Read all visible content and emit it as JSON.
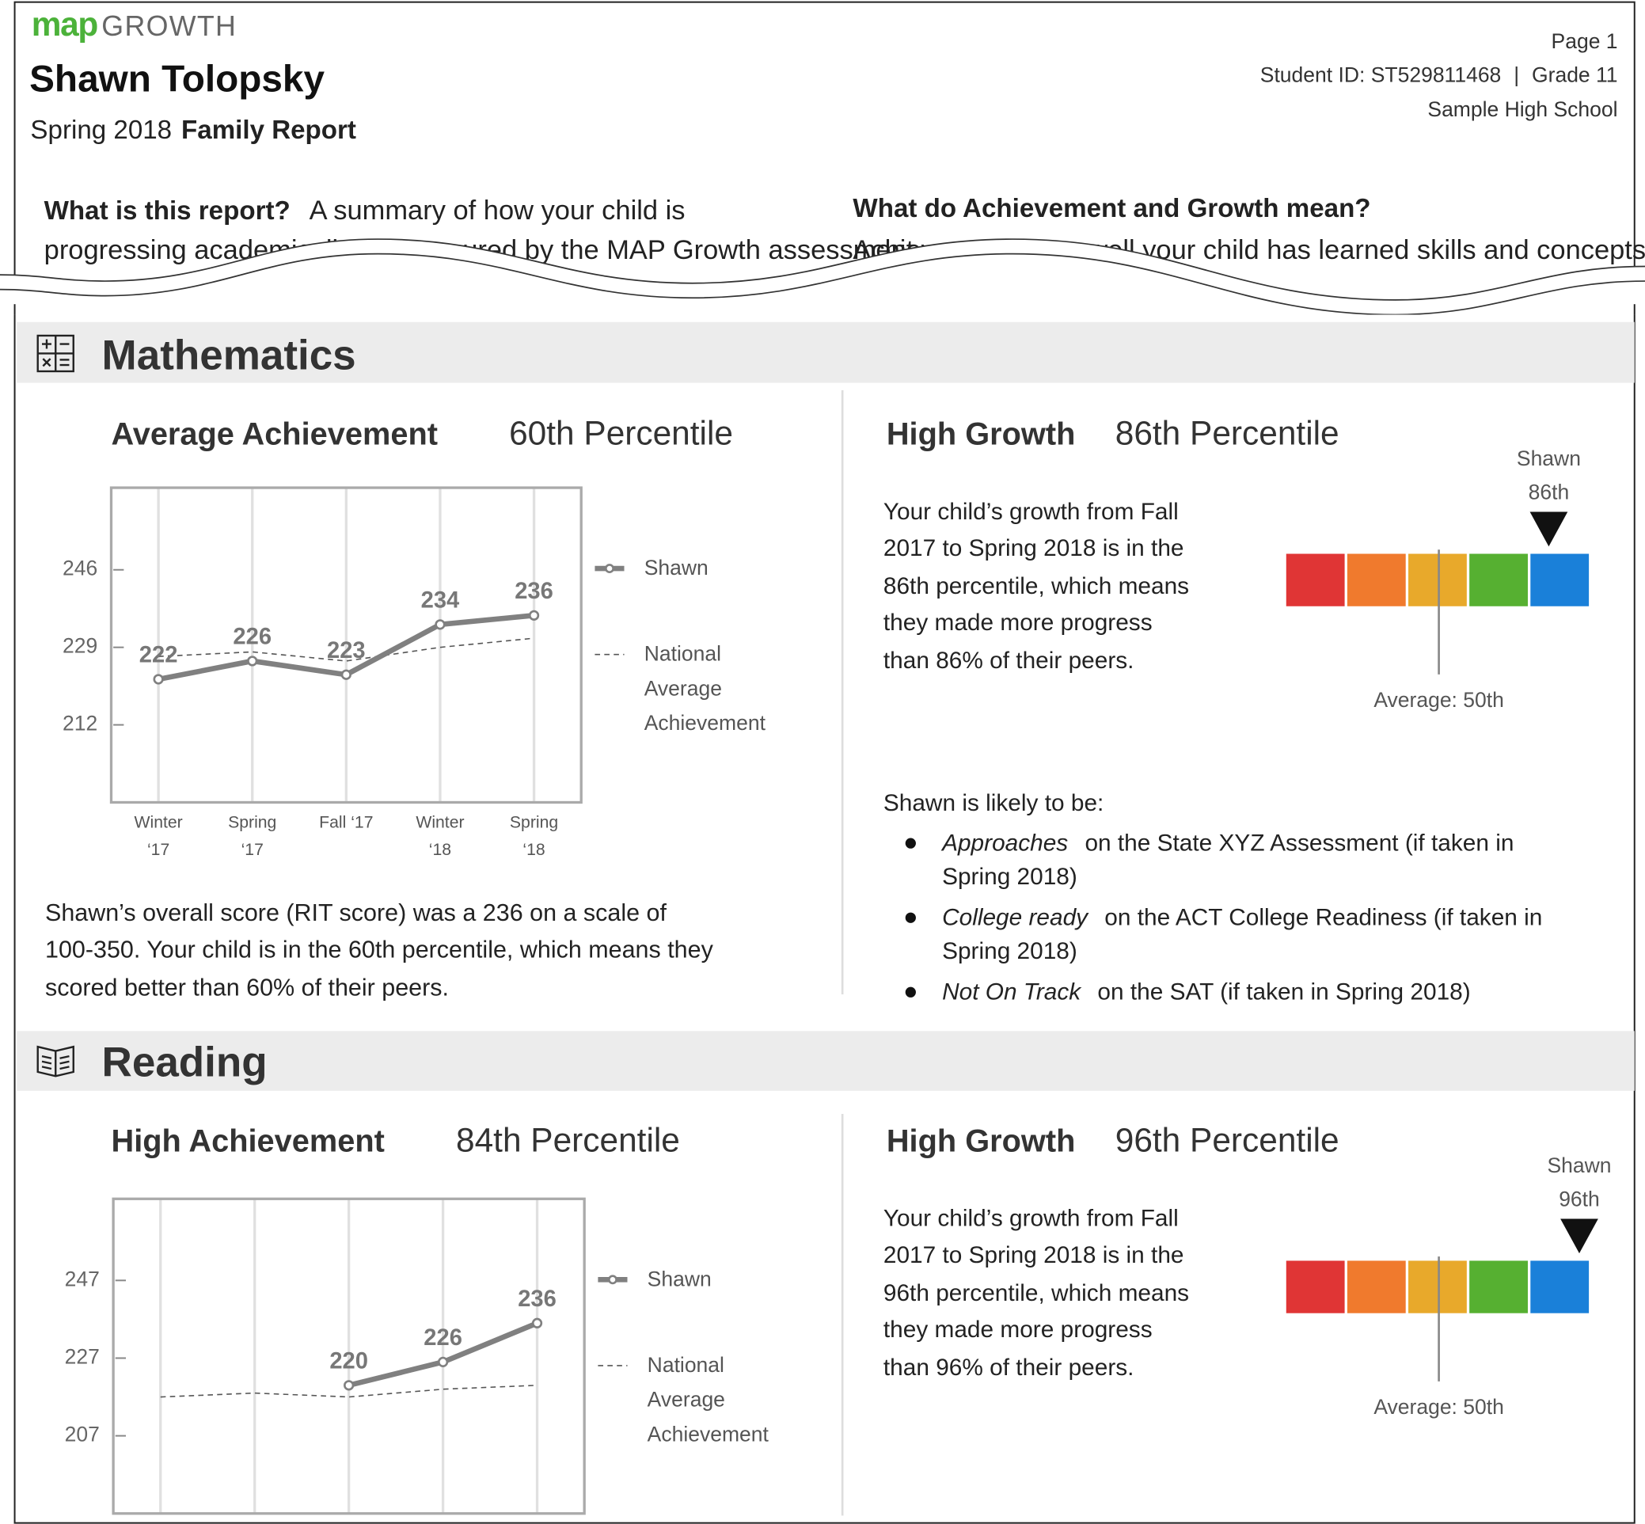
{
  "header": {
    "logo_brand": "map",
    "logo_product": "GROWTH",
    "student_name": "Shawn Tolopsky",
    "term": "Spring 2018",
    "report_type": "Family Report",
    "page": "Page 1",
    "student_id": "Student ID: ST529811468",
    "separator": "|",
    "grade": "Grade 11",
    "school": "Sample High School"
  },
  "intro": [
    {
      "question": "What is this report?",
      "answer": [
        "A summary of how your child is",
        "progressing academically as measured by the MAP Growth assessment"
      ]
    },
    {
      "question": "What do Achievement and Growth mean?",
      "answer": [
        "Achievement: How well your child has learned skills and concepts"
      ]
    }
  ],
  "sections": [
    {
      "title": "Mathematics",
      "achievement": {
        "level": "Average Achievement",
        "percentile": "60th Percentile",
        "chart": {
          "type": "line",
          "categories": [
            [
              "Winter",
              "‘17"
            ],
            [
              "Spring",
              "‘17"
            ],
            [
              "Fall ‘17"
            ],
            [
              "Winter",
              "‘18"
            ],
            [
              "Spring",
              "‘18"
            ]
          ],
          "series": [
            {
              "name": "Shawn",
              "color": "#808080",
              "data_labels": true,
              "values": [
                222,
                226,
                223,
                234,
                236
              ]
            },
            {
              "name": "National Average Achievement",
              "color": "#555555",
              "dashed": true,
              "values": [
                227,
                228,
                226,
                229,
                231
              ]
            }
          ],
          "ylim": [
            195,
            264
          ],
          "yticks": [
            212,
            229,
            246
          ]
        },
        "description": [
          "Shawn’s overall score (RIT score) was a 236 on a scale of",
          "100-350. Your child is in the 60th percentile, which means they",
          "scored better than 60% of their peers."
        ]
      },
      "growth": {
        "level": "High Growth",
        "percentile": "86th Percentile",
        "description": [
          "Your child’s growth from Fall",
          "2017 to Spring 2018 is in the",
          "86th percentile, which means",
          "they made more progress",
          "than 86% of their peers."
        ],
        "marker": {
          "name": "Shawn",
          "value": 86,
          "label": "86th"
        },
        "average": {
          "value": 50,
          "label": "Average: 50th"
        },
        "likely_heading": "Shawn is likely to be:",
        "likely": [
          {
            "level": "Approaches",
            "lines": [
              "on the State XYZ Assessment (if taken in",
              "Spring 2018)"
            ]
          },
          {
            "level": "College ready",
            "lines": [
              "on the ACT College Readiness (if taken in",
              "Spring 2018)"
            ]
          },
          {
            "level": "Not On Track",
            "lines": [
              "on the SAT (if taken in Spring 2018)"
            ]
          }
        ]
      }
    },
    {
      "title": "Reading",
      "achievement": {
        "level": "High Achievement",
        "percentile": "84th Percentile",
        "chart": {
          "type": "line",
          "categories": [
            null,
            null,
            null,
            null,
            null
          ],
          "series": [
            {
              "name": "Shawn",
              "color": "#808080",
              "data_labels": true,
              "values": [
                null,
                null,
                220,
                226,
                236
              ]
            },
            {
              "name": "National Average Achievement",
              "color": "#555555",
              "dashed": true,
              "values": [
                217,
                218,
                217,
                219,
                220
              ]
            }
          ],
          "ylim": [
            187,
            268
          ],
          "yticks": [
            207,
            227,
            247
          ]
        }
      },
      "growth": {
        "level": "High Growth",
        "percentile": "96th Percentile",
        "description": [
          "Your child’s growth from Fall",
          "2017 to Spring 2018 is in the",
          "96th percentile, which means",
          "they made more progress",
          "than 96% of their peers."
        ],
        "marker": {
          "name": "Shawn",
          "value": 96,
          "label": "96th"
        },
        "average": {
          "value": 50,
          "label": "Average: 50th"
        }
      }
    }
  ]
}
